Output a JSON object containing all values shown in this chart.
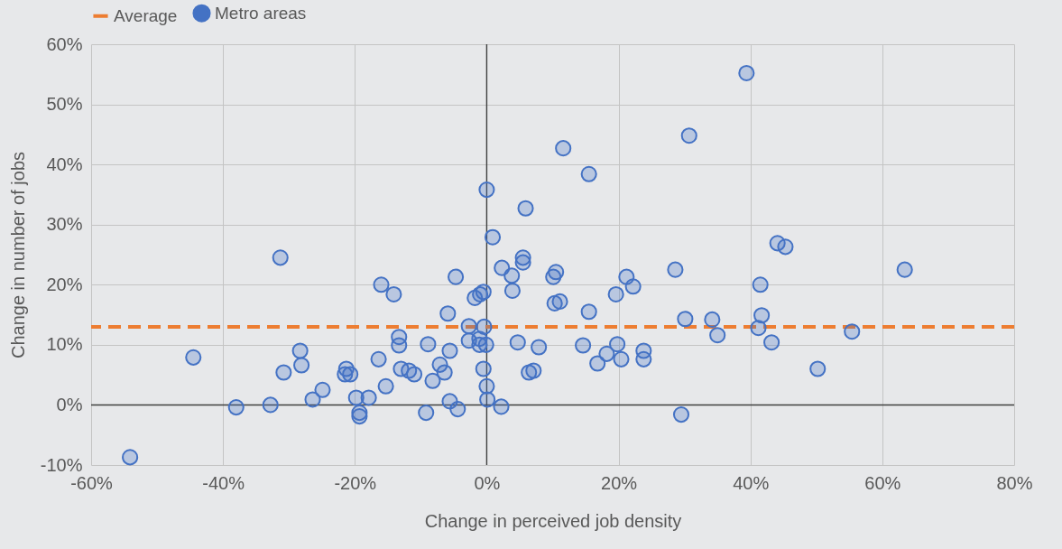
{
  "chart_data": {
    "type": "scatter",
    "xlabel": "Change in perceived job density",
    "ylabel": "Change in number of jobs",
    "xlim": [
      -60,
      80
    ],
    "xticks": [
      {
        "value": -60,
        "label": "-60%"
      },
      {
        "value": -40,
        "label": "-40%"
      },
      {
        "value": -20,
        "label": "-20%"
      },
      {
        "value": 0,
        "label": "0%"
      },
      {
        "value": 20,
        "label": "20%"
      },
      {
        "value": 40,
        "label": "40%"
      },
      {
        "value": 60,
        "label": "60%"
      },
      {
        "value": 80,
        "label": "80%"
      }
    ],
    "ylim": [
      -10,
      60
    ],
    "yticks": [
      {
        "value": -10,
        "label": "-10%"
      },
      {
        "value": 0,
        "label": "0%"
      },
      {
        "value": 10,
        "label": "10%"
      },
      {
        "value": 20,
        "label": "20%"
      },
      {
        "value": 30,
        "label": "30%"
      },
      {
        "value": 40,
        "label": "40%"
      },
      {
        "value": 50,
        "label": "50%"
      },
      {
        "value": 60,
        "label": "60%"
      }
    ],
    "grid": true,
    "legend": "top",
    "marker": "circle",
    "ref_lines": [
      {
        "axis": "y",
        "value": 13,
        "label": "Average",
        "color": "#ed7d31",
        "line_style": "dashed"
      }
    ],
    "series": [
      {
        "name": "Metro areas",
        "color": "#4472c4",
        "x": [
          -54.1,
          -44.5,
          -38.0,
          -32.8,
          -31.3,
          -30.8,
          -28.3,
          -28.1,
          -26.4,
          -24.9,
          -21.3,
          -21.5,
          -20.7,
          -19.8,
          -19.3,
          -19.3,
          -17.9,
          -16.4,
          -16.0,
          -15.3,
          -14.1,
          -13.3,
          -13.3,
          -13.0,
          -11.8,
          -11.0,
          -9.2,
          -8.9,
          -8.2,
          -7.1,
          -6.4,
          -5.9,
          -5.6,
          -5.6,
          -4.7,
          -4.4,
          -2.7,
          -2.7,
          -1.8,
          -1.1,
          -1.1,
          -1.0,
          -0.5,
          -0.4,
          -0.5,
          -0.1,
          0,
          0,
          0.1,
          0.9,
          2.2,
          2.3,
          3.8,
          3.9,
          4.7,
          5.5,
          5.5,
          5.9,
          6.4,
          7.1,
          7.9,
          10.1,
          10.5,
          10.3,
          11.1,
          11.6,
          14.6,
          15.5,
          15.5,
          16.8,
          18.2,
          19.6,
          19.8,
          20.4,
          21.2,
          22.2,
          23.8,
          23.8,
          28.6,
          29.5,
          30.1,
          30.7,
          34.2,
          35.0,
          39.4,
          41.2,
          41.5,
          41.7,
          43.2,
          44.1,
          45.3,
          50.2,
          55.4,
          63.4
        ],
        "values": [
          -8.7,
          7.9,
          -0.4,
          0,
          24.5,
          5.4,
          9.0,
          6.6,
          0.9,
          2.5,
          6.0,
          5.1,
          5.1,
          1.2,
          -1.3,
          -1.9,
          1.2,
          7.6,
          20.0,
          3.1,
          18.4,
          11.3,
          9.9,
          6.0,
          5.7,
          5.1,
          -1.3,
          10.1,
          4.0,
          6.7,
          5.4,
          15.2,
          9.0,
          0.6,
          21.3,
          -0.7,
          13.1,
          10.7,
          17.8,
          11.0,
          10.0,
          18.4,
          18.8,
          13.0,
          6.0,
          10.0,
          35.8,
          3.1,
          0.9,
          27.9,
          -0.3,
          22.8,
          21.5,
          19.0,
          10.4,
          24.5,
          23.7,
          32.7,
          5.4,
          5.7,
          9.6,
          21.3,
          22.1,
          16.9,
          17.2,
          42.7,
          9.9,
          15.5,
          38.4,
          6.9,
          8.5,
          18.4,
          10.1,
          7.6,
          21.3,
          19.7,
          9.0,
          7.6,
          22.5,
          -1.6,
          14.3,
          44.8,
          14.2,
          11.6,
          55.2,
          12.8,
          20.0,
          14.9,
          10.4,
          26.9,
          26.3,
          6.0,
          12.2,
          22.5
        ]
      }
    ]
  }
}
